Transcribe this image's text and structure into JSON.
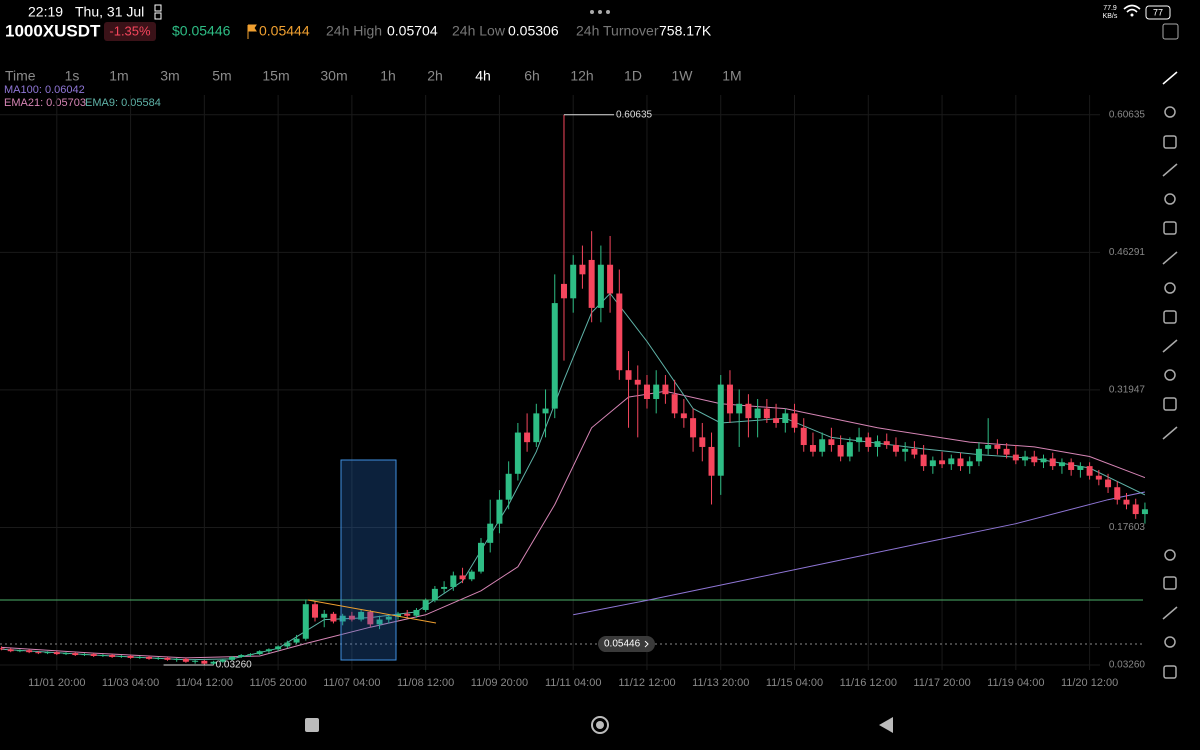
{
  "status_bar": {
    "time": "22:19",
    "date": "Thu, 31 Jul",
    "net_speed": "77.9",
    "net_unit": "KB/s",
    "battery": "77"
  },
  "header": {
    "symbol": "1000XUSDT",
    "change": "-1.35%",
    "last_price": "$0.05446",
    "mark_price": "0.05444",
    "stats": [
      {
        "label": "24h High",
        "value": "0.05704"
      },
      {
        "label": "24h Low",
        "value": "0.05306"
      },
      {
        "label": "24h Turnover",
        "value": "758.17K"
      }
    ]
  },
  "timeframes": [
    "Time",
    "1s",
    "1m",
    "3m",
    "5m",
    "15m",
    "30m",
    "1h",
    "2h",
    "4h",
    "6h",
    "12h",
    "1D",
    "1W",
    "1M"
  ],
  "active_timeframe": "4h",
  "chart_data": {
    "type": "candlestick",
    "up_color": "#2ebd85",
    "down_color": "#f6465d",
    "ylim": [
      0.0274,
      0.627
    ],
    "yticks": [
      {
        "value": 0.0326,
        "label": "0.03260"
      },
      0.17603,
      0.31947,
      0.46291,
      0.60635
    ],
    "xlim": [
      -0.16,
      125.2
    ],
    "xticks": [
      {
        "value": 6,
        "label": "11/01 20:00"
      },
      {
        "value": 14,
        "label": "11/03 04:00"
      },
      {
        "value": 22,
        "label": "11/04 12:00"
      },
      {
        "value": 30,
        "label": "11/05 20:00"
      },
      {
        "value": 38,
        "label": "11/07 04:00"
      },
      {
        "value": 46,
        "label": "11/08 12:00"
      },
      {
        "value": 54,
        "label": "11/09 20:00"
      },
      {
        "value": 62,
        "label": "11/11 04:00"
      },
      {
        "value": 70,
        "label": "11/12 12:00"
      },
      {
        "value": 78,
        "label": "11/13 20:00"
      },
      {
        "value": 86,
        "label": "11/15 04:00"
      },
      {
        "value": 94,
        "label": "11/16 12:00"
      },
      {
        "value": 102,
        "label": "11/17 20:00"
      },
      {
        "value": 110,
        "label": "11/19 04:00"
      },
      {
        "value": 118,
        "label": "11/20 12:00"
      }
    ],
    "grid": true,
    "ohlc": [
      [
        0.05,
        0.052,
        0.048,
        0.049
      ],
      [
        0.049,
        0.05,
        0.046,
        0.047
      ],
      [
        0.047,
        0.049,
        0.046,
        0.048
      ],
      [
        0.048,
        0.049,
        0.045,
        0.046
      ],
      [
        0.046,
        0.047,
        0.044,
        0.045
      ],
      [
        0.045,
        0.047,
        0.044,
        0.046
      ],
      [
        0.046,
        0.047,
        0.043,
        0.044
      ],
      [
        0.044,
        0.046,
        0.043,
        0.045
      ],
      [
        0.045,
        0.046,
        0.042,
        0.043
      ],
      [
        0.043,
        0.045,
        0.042,
        0.044
      ],
      [
        0.044,
        0.045,
        0.041,
        0.042
      ],
      [
        0.042,
        0.044,
        0.041,
        0.043
      ],
      [
        0.043,
        0.044,
        0.04,
        0.041
      ],
      [
        0.041,
        0.043,
        0.04,
        0.042
      ],
      [
        0.042,
        0.043,
        0.039,
        0.04
      ],
      [
        0.04,
        0.042,
        0.039,
        0.041
      ],
      [
        0.041,
        0.042,
        0.038,
        0.039
      ],
      [
        0.039,
        0.041,
        0.038,
        0.04
      ],
      [
        0.04,
        0.041,
        0.037,
        0.038
      ],
      [
        0.038,
        0.04,
        0.036,
        0.039
      ],
      [
        0.039,
        0.04,
        0.035,
        0.036
      ],
      [
        0.036,
        0.038,
        0.034,
        0.037
      ],
      [
        0.037,
        0.038,
        0.033,
        0.034
      ],
      [
        0.034,
        0.037,
        0.0326,
        0.036
      ],
      [
        0.036,
        0.039,
        0.035,
        0.038
      ],
      [
        0.038,
        0.042,
        0.037,
        0.041
      ],
      [
        0.041,
        0.044,
        0.04,
        0.043
      ],
      [
        0.043,
        0.045,
        0.041,
        0.044
      ],
      [
        0.044,
        0.048,
        0.043,
        0.047
      ],
      [
        0.047,
        0.05,
        0.045,
        0.049
      ],
      [
        0.049,
        0.053,
        0.047,
        0.052
      ],
      [
        0.052,
        0.058,
        0.05,
        0.056
      ],
      [
        0.056,
        0.064,
        0.054,
        0.06
      ],
      [
        0.06,
        0.101,
        0.058,
        0.096
      ],
      [
        0.096,
        0.099,
        0.078,
        0.082
      ],
      [
        0.082,
        0.09,
        0.072,
        0.086
      ],
      [
        0.086,
        0.088,
        0.076,
        0.078
      ],
      [
        0.078,
        0.086,
        0.074,
        0.084
      ],
      [
        0.084,
        0.088,
        0.078,
        0.08
      ],
      [
        0.08,
        0.09,
        0.078,
        0.088
      ],
      [
        0.088,
        0.09,
        0.072,
        0.075
      ],
      [
        0.075,
        0.084,
        0.07,
        0.08
      ],
      [
        0.08,
        0.085,
        0.076,
        0.083
      ],
      [
        0.083,
        0.088,
        0.08,
        0.086
      ],
      [
        0.086,
        0.09,
        0.082,
        0.084
      ],
      [
        0.084,
        0.092,
        0.082,
        0.09
      ],
      [
        0.09,
        0.102,
        0.088,
        0.1
      ],
      [
        0.1,
        0.115,
        0.098,
        0.112
      ],
      [
        0.112,
        0.12,
        0.108,
        0.114
      ],
      [
        0.114,
        0.13,
        0.11,
        0.126
      ],
      [
        0.126,
        0.134,
        0.118,
        0.122
      ],
      [
        0.122,
        0.132,
        0.12,
        0.13
      ],
      [
        0.13,
        0.165,
        0.128,
        0.16
      ],
      [
        0.16,
        0.205,
        0.15,
        0.18
      ],
      [
        0.18,
        0.215,
        0.17,
        0.205
      ],
      [
        0.205,
        0.245,
        0.195,
        0.232
      ],
      [
        0.232,
        0.285,
        0.225,
        0.275
      ],
      [
        0.275,
        0.295,
        0.255,
        0.265
      ],
      [
        0.265,
        0.305,
        0.26,
        0.295
      ],
      [
        0.295,
        0.32,
        0.27,
        0.3
      ],
      [
        0.3,
        0.44,
        0.29,
        0.41
      ],
      [
        0.43,
        0.60635,
        0.35,
        0.415
      ],
      [
        0.415,
        0.46,
        0.4,
        0.45
      ],
      [
        0.45,
        0.47,
        0.425,
        0.44
      ],
      [
        0.455,
        0.485,
        0.39,
        0.405
      ],
      [
        0.405,
        0.47,
        0.39,
        0.45
      ],
      [
        0.45,
        0.48,
        0.4,
        0.42
      ],
      [
        0.42,
        0.445,
        0.33,
        0.34
      ],
      [
        0.34,
        0.36,
        0.28,
        0.33
      ],
      [
        0.33,
        0.345,
        0.27,
        0.325
      ],
      [
        0.325,
        0.335,
        0.3,
        0.31
      ],
      [
        0.31,
        0.34,
        0.295,
        0.325
      ],
      [
        0.325,
        0.335,
        0.305,
        0.315
      ],
      [
        0.315,
        0.33,
        0.29,
        0.295
      ],
      [
        0.295,
        0.31,
        0.28,
        0.29
      ],
      [
        0.29,
        0.3,
        0.255,
        0.27
      ],
      [
        0.27,
        0.285,
        0.245,
        0.26
      ],
      [
        0.26,
        0.275,
        0.2,
        0.23
      ],
      [
        0.23,
        0.335,
        0.21,
        0.325
      ],
      [
        0.325,
        0.34,
        0.285,
        0.295
      ],
      [
        0.295,
        0.32,
        0.26,
        0.305
      ],
      [
        0.305,
        0.315,
        0.27,
        0.29
      ],
      [
        0.29,
        0.31,
        0.27,
        0.3
      ],
      [
        0.3,
        0.31,
        0.285,
        0.29
      ],
      [
        0.29,
        0.305,
        0.28,
        0.285
      ],
      [
        0.285,
        0.3,
        0.275,
        0.295
      ],
      [
        0.295,
        0.305,
        0.275,
        0.28
      ],
      [
        0.28,
        0.29,
        0.255,
        0.262
      ],
      [
        0.262,
        0.275,
        0.25,
        0.255
      ],
      [
        0.255,
        0.275,
        0.25,
        0.268
      ],
      [
        0.268,
        0.28,
        0.255,
        0.262
      ],
      [
        0.262,
        0.272,
        0.245,
        0.25
      ],
      [
        0.25,
        0.27,
        0.245,
        0.265
      ],
      [
        0.265,
        0.28,
        0.255,
        0.27
      ],
      [
        0.27,
        0.275,
        0.255,
        0.26
      ],
      [
        0.26,
        0.272,
        0.25,
        0.266
      ],
      [
        0.266,
        0.274,
        0.258,
        0.262
      ],
      [
        0.262,
        0.27,
        0.25,
        0.255
      ],
      [
        0.255,
        0.265,
        0.245,
        0.258
      ],
      [
        0.258,
        0.266,
        0.248,
        0.252
      ],
      [
        0.252,
        0.262,
        0.235,
        0.24
      ],
      [
        0.24,
        0.25,
        0.232,
        0.246
      ],
      [
        0.246,
        0.255,
        0.238,
        0.242
      ],
      [
        0.242,
        0.252,
        0.236,
        0.248
      ],
      [
        0.248,
        0.254,
        0.235,
        0.24
      ],
      [
        0.24,
        0.25,
        0.232,
        0.245
      ],
      [
        0.245,
        0.265,
        0.24,
        0.258
      ],
      [
        0.258,
        0.29,
        0.252,
        0.262
      ],
      [
        0.262,
        0.268,
        0.252,
        0.258
      ],
      [
        0.258,
        0.264,
        0.248,
        0.252
      ],
      [
        0.252,
        0.262,
        0.242,
        0.246
      ],
      [
        0.246,
        0.256,
        0.24,
        0.25
      ],
      [
        0.25,
        0.256,
        0.24,
        0.244
      ],
      [
        0.244,
        0.252,
        0.238,
        0.248
      ],
      [
        0.248,
        0.254,
        0.236,
        0.24
      ],
      [
        0.24,
        0.248,
        0.232,
        0.244
      ],
      [
        0.244,
        0.248,
        0.23,
        0.236
      ],
      [
        0.236,
        0.244,
        0.228,
        0.24
      ],
      [
        0.24,
        0.244,
        0.226,
        0.23
      ],
      [
        0.23,
        0.236,
        0.22,
        0.226
      ],
      [
        0.226,
        0.232,
        0.212,
        0.218
      ],
      [
        0.218,
        0.224,
        0.2,
        0.205
      ],
      [
        0.205,
        0.212,
        0.195,
        0.2
      ],
      [
        0.2,
        0.206,
        0.185,
        0.19
      ],
      [
        0.19,
        0.202,
        0.18,
        0.195
      ]
    ],
    "low_label": "0.03260",
    "indicators": [
      {
        "label": "MA100: 0.06042",
        "color": "#8f76d6",
        "x": [
          62,
          70,
          80,
          90,
          100,
          110,
          120,
          124
        ],
        "values": [
          0.085,
          0.1,
          0.12,
          0.14,
          0.16,
          0.18,
          0.205,
          0.213
        ]
      },
      {
        "label": "EMA21: 0.05703",
        "color": "#d685b5",
        "x": [
          0,
          10,
          20,
          28,
          33,
          40,
          46,
          52,
          56,
          60,
          64,
          68,
          72,
          78,
          85,
          95,
          105,
          112,
          118,
          124
        ],
        "values": [
          0.051,
          0.045,
          0.04,
          0.042,
          0.055,
          0.072,
          0.085,
          0.11,
          0.135,
          0.2,
          0.28,
          0.312,
          0.318,
          0.305,
          0.3,
          0.28,
          0.265,
          0.26,
          0.25,
          0.228
        ]
      },
      {
        "label": "EMA9: 0.05584",
        "color": "#5fb3a8",
        "x": [
          0,
          10,
          20,
          25,
          30,
          35,
          40,
          45,
          50,
          55,
          58,
          61,
          64,
          66,
          70,
          75,
          78,
          85,
          90,
          100,
          106,
          112,
          118,
          124
        ],
        "values": [
          0.049,
          0.043,
          0.038,
          0.039,
          0.05,
          0.08,
          0.082,
          0.088,
          0.12,
          0.2,
          0.255,
          0.33,
          0.4,
          0.42,
          0.37,
          0.3,
          0.285,
          0.29,
          0.27,
          0.258,
          0.252,
          0.248,
          0.238,
          0.21
        ]
      }
    ],
    "levels": [
      {
        "value": 0.1004,
        "color": "#4caf6a"
      }
    ],
    "last_price": 0.05446
  }
}
